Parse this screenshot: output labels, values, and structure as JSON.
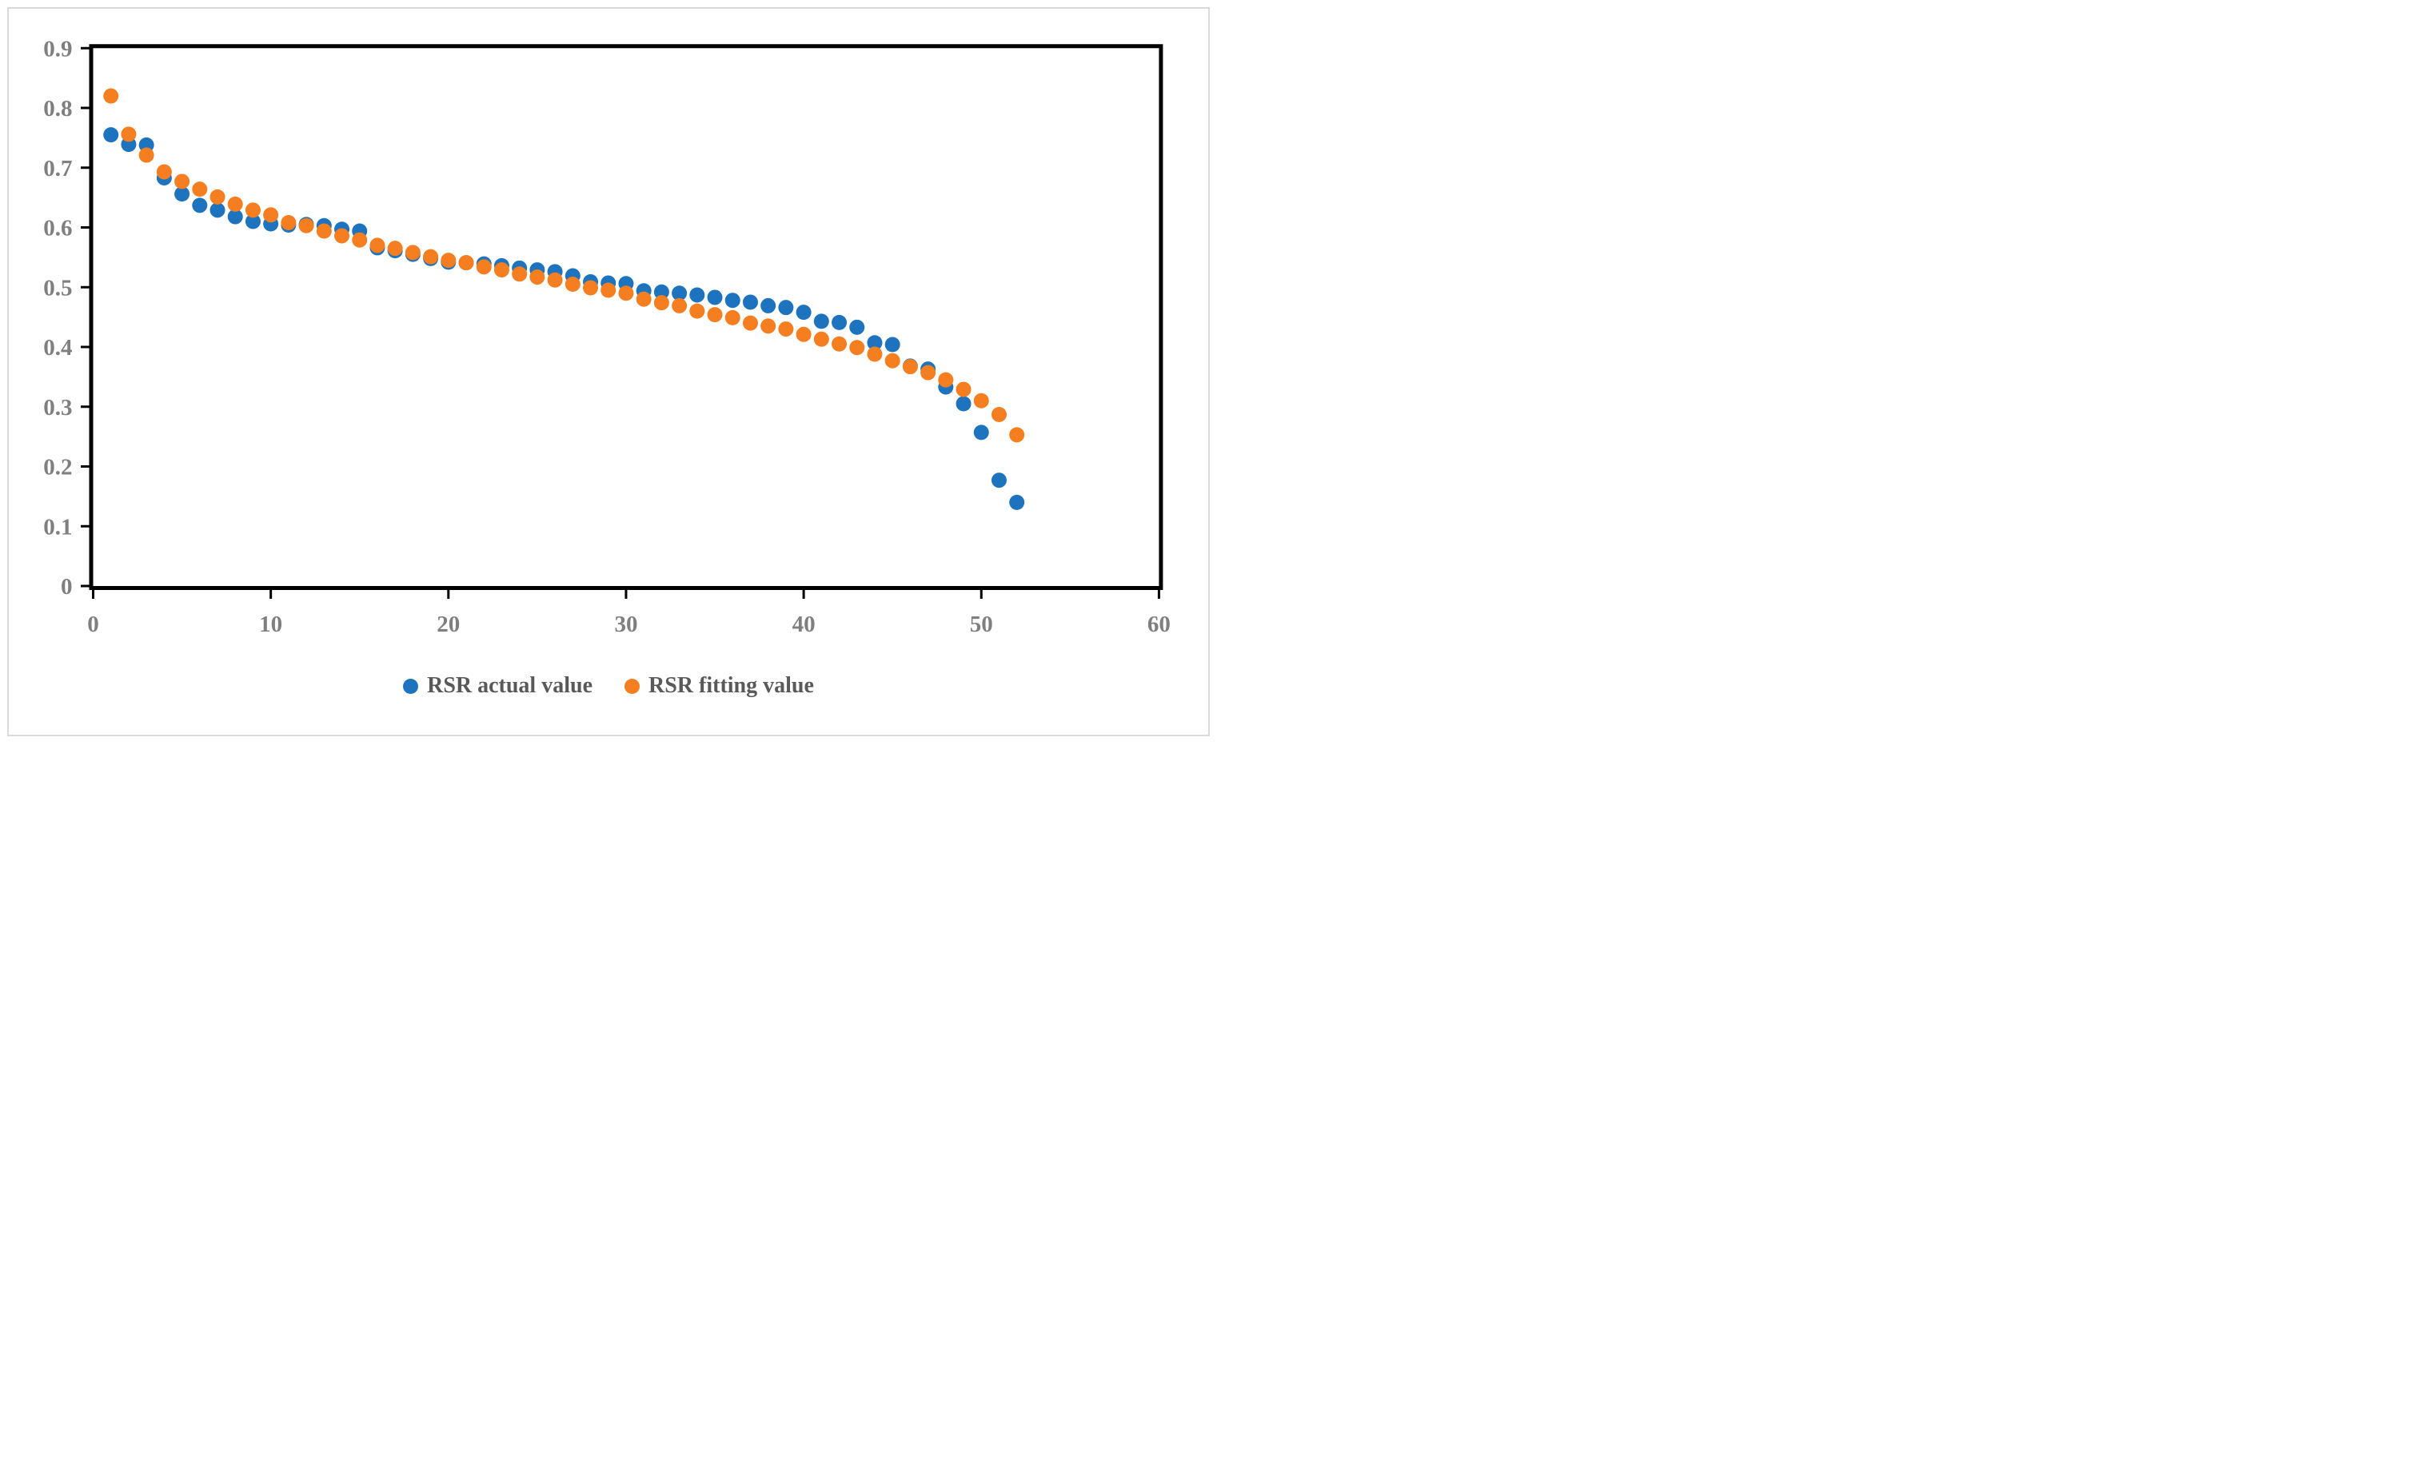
{
  "figure": {
    "background": "#FFFFFF",
    "border_color": "#D9D9D9"
  },
  "axes": {
    "axis_line_color": "#000000",
    "tick_mark_color": "#000000",
    "tick_label_color": "#7F7F7F"
  },
  "legend": {
    "text_color": "#595959",
    "items": [
      {
        "label": "RSR actual value",
        "color": "#1E73BE"
      },
      {
        "label": "RSR fitting value",
        "color": "#F57E20"
      }
    ]
  },
  "chart_data": {
    "type": "scatter",
    "title": "",
    "xlabel": "",
    "ylabel": "",
    "xlim": [
      0,
      60
    ],
    "ylim": [
      0,
      0.9
    ],
    "x_tick_labels": [
      "0",
      "10",
      "20",
      "30",
      "40",
      "50",
      "60"
    ],
    "x_tick_values": [
      0,
      10,
      20,
      30,
      40,
      50,
      60
    ],
    "y_tick_labels": [
      "0",
      "0.1",
      "0.2",
      "0.3",
      "0.4",
      "0.5",
      "0.6",
      "0.7",
      "0.8",
      "0.9"
    ],
    "y_tick_values": [
      0,
      0.1,
      0.2,
      0.3,
      0.4,
      0.5,
      0.6,
      0.7,
      0.8,
      0.9
    ],
    "grid": false,
    "legend_position": "bottom-center",
    "marker": "circle",
    "x": [
      1,
      2,
      3,
      4,
      5,
      6,
      7,
      8,
      9,
      10,
      11,
      12,
      13,
      14,
      15,
      16,
      17,
      18,
      19,
      20,
      21,
      22,
      23,
      24,
      25,
      26,
      27,
      28,
      29,
      30,
      31,
      32,
      33,
      34,
      35,
      36,
      37,
      38,
      39,
      40,
      41,
      42,
      43,
      44,
      45,
      46,
      47,
      48,
      49,
      50,
      51,
      52
    ],
    "series": [
      {
        "name": "RSR actual value",
        "color": "#1E73BE",
        "values": [
          0.755,
          0.739,
          0.738,
          0.683,
          0.656,
          0.637,
          0.629,
          0.618,
          0.61,
          0.606,
          0.604,
          0.605,
          0.603,
          0.597,
          0.594,
          0.566,
          0.561,
          0.555,
          0.548,
          0.542,
          0.541,
          0.539,
          0.536,
          0.532,
          0.529,
          0.526,
          0.519,
          0.509,
          0.507,
          0.506,
          0.494,
          0.492,
          0.49,
          0.487,
          0.483,
          0.478,
          0.475,
          0.469,
          0.466,
          0.458,
          0.443,
          0.441,
          0.433,
          0.407,
          0.404,
          0.368,
          0.363,
          0.333,
          0.305,
          0.257,
          0.177,
          0.14
        ]
      },
      {
        "name": "RSR fitting value",
        "color": "#F57E20",
        "values": [
          0.82,
          0.756,
          0.721,
          0.693,
          0.677,
          0.664,
          0.651,
          0.639,
          0.629,
          0.621,
          0.608,
          0.603,
          0.594,
          0.586,
          0.579,
          0.57,
          0.565,
          0.558,
          0.551,
          0.545,
          0.541,
          0.534,
          0.529,
          0.522,
          0.517,
          0.512,
          0.505,
          0.499,
          0.495,
          0.49,
          0.48,
          0.474,
          0.469,
          0.46,
          0.454,
          0.449,
          0.44,
          0.435,
          0.43,
          0.421,
          0.413,
          0.405,
          0.399,
          0.388,
          0.377,
          0.367,
          0.357,
          0.345,
          0.329,
          0.31,
          0.287,
          0.253
        ]
      }
    ]
  }
}
